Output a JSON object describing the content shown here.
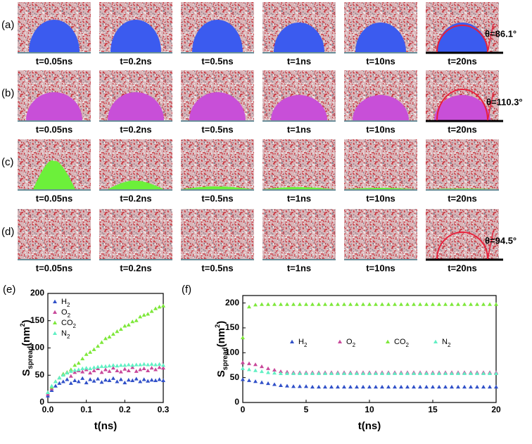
{
  "panels": {
    "rows": [
      {
        "label": "(a)",
        "times": [
          "t=0.05ns",
          "t=0.2ns",
          "t=0.5ns",
          "t=1ns",
          "t=10ns",
          "t=20ns"
        ],
        "color": "#3b5bef",
        "angle": "θ=86.1°"
      },
      {
        "label": "(b)",
        "times": [
          "t=0.05ns",
          "t=0.2ns",
          "t=0.5ns",
          "t=1ns",
          "t=10ns",
          "t=20ns"
        ],
        "color": "#c84fd8",
        "angle": "θ=110.3°"
      },
      {
        "label": "(c)",
        "times": [
          "t=0.05ns",
          "t=0.2ns",
          "t=0.5ns",
          "t=1ns",
          "t=10ns",
          "t=20ns"
        ],
        "color": "#6cf03a"
      },
      {
        "label": "(d)",
        "times": [
          "t=0.05ns",
          "t=0.2ns",
          "t=0.5ns",
          "t=1ns",
          "t=10ns",
          "t=20ns"
        ],
        "color": "#5fe3b2",
        "angle": "θ=94.5°"
      }
    ]
  },
  "chart_data": [
    {
      "type": "scatter",
      "label": "(e)",
      "x_label": "t(ns)",
      "y_label": [
        "S",
        "spread",
        "(nm",
        "2",
        ")"
      ],
      "x": [
        0,
        0.01,
        0.02,
        0.03,
        0.04,
        0.05,
        0.06,
        0.07,
        0.08,
        0.09,
        0.1,
        0.11,
        0.12,
        0.13,
        0.14,
        0.15,
        0.16,
        0.17,
        0.18,
        0.19,
        0.2,
        0.21,
        0.22,
        0.23,
        0.24,
        0.25,
        0.26,
        0.27,
        0.28,
        0.29,
        0.3
      ],
      "xlim": [
        0,
        0.3
      ],
      "xticks": [
        {
          "value": 0,
          "label": "0.0"
        },
        0.1,
        0.2,
        0.3
      ],
      "ylim": [
        0,
        200
      ],
      "yticks": [
        0,
        50,
        100,
        150,
        200
      ],
      "legend": "upper left",
      "series": [
        {
          "name": "H2",
          "color": "#3050c8",
          "values": [
            12,
            22,
            30,
            35,
            38,
            42,
            35,
            40,
            38,
            44,
            36,
            42,
            39,
            43,
            37,
            41,
            40,
            44,
            38,
            42,
            36,
            41,
            40,
            43,
            38,
            42,
            39,
            41,
            40,
            42,
            40
          ]
        },
        {
          "name": "O2",
          "color": "#c8489a",
          "values": [
            15,
            25,
            38,
            45,
            52,
            55,
            48,
            55,
            58,
            56,
            60,
            54,
            58,
            62,
            55,
            60,
            57,
            63,
            58,
            56,
            61,
            58,
            64,
            57,
            60,
            62,
            58,
            63,
            60,
            64,
            63
          ]
        },
        {
          "name": "CO2",
          "color": "#7ee83a",
          "values": [
            18,
            28,
            38,
            45,
            52,
            55,
            60,
            68,
            72,
            80,
            88,
            92,
            97,
            103,
            110,
            117,
            120,
            125,
            130,
            134,
            140,
            142,
            148,
            150,
            157,
            160,
            162,
            167,
            172,
            175,
            177
          ]
        },
        {
          "name": "N2",
          "color": "#62f0c4",
          "values": [
            18,
            30,
            38,
            45,
            50,
            54,
            57,
            59,
            60,
            62,
            63,
            62,
            64,
            65,
            66,
            66,
            67,
            68,
            67,
            68,
            68,
            69,
            68,
            69,
            69,
            70,
            69,
            70,
            69,
            70,
            68
          ]
        }
      ]
    },
    {
      "type": "scatter",
      "label": "(f)",
      "x_label": "t(ns)",
      "y_label": [
        "S",
        "spread",
        "(nm",
        "2",
        ")"
      ],
      "x": [
        0,
        0.5,
        1,
        1.5,
        2,
        2.5,
        3,
        3.5,
        4,
        4.5,
        5,
        5.5,
        6,
        6.5,
        7,
        7.5,
        8,
        8.5,
        9,
        9.5,
        10,
        10.5,
        11,
        11.5,
        12,
        12.5,
        13,
        13.5,
        14,
        14.5,
        15,
        15.5,
        16,
        16.5,
        17,
        17.5,
        18,
        18.5,
        19,
        19.5,
        20
      ],
      "xlim": [
        0,
        20
      ],
      "xticks": [
        0,
        5,
        10,
        15,
        20
      ],
      "ylim": [
        0,
        215
      ],
      "yticks": [
        0,
        50,
        100,
        150,
        200
      ],
      "legend": "center",
      "series": [
        {
          "name": "H2",
          "color": "#3050c8",
          "values": [
            46,
            44,
            42,
            40,
            38,
            36,
            34,
            33,
            32,
            32,
            32,
            31,
            31,
            31,
            31,
            31,
            31,
            31,
            31,
            31,
            31,
            31,
            31,
            31,
            31,
            31,
            31,
            31,
            31,
            31,
            31,
            31,
            31,
            31,
            31,
            31,
            31,
            31,
            31,
            31,
            31
          ]
        },
        {
          "name": "O2",
          "color": "#c8489a",
          "values": [
            80,
            78,
            76,
            72,
            68,
            65,
            62,
            61,
            60,
            60,
            60,
            60,
            60,
            60,
            60,
            60,
            60,
            60,
            60,
            60,
            60,
            60,
            60,
            60,
            60,
            60,
            60,
            60,
            60,
            60,
            60,
            60,
            60,
            60,
            60,
            60,
            60,
            60,
            60,
            60,
            60
          ]
        },
        {
          "name": "CO2",
          "color": "#7ee83a",
          "values": [
            130,
            192,
            196,
            197,
            197,
            197,
            197,
            197,
            197,
            197,
            197,
            197,
            197,
            197,
            197,
            197,
            197,
            197,
            197,
            197,
            197,
            197,
            197,
            197,
            197,
            197,
            197,
            197,
            197,
            197,
            197,
            197,
            197,
            197,
            197,
            197,
            197,
            197,
            197,
            197,
            197
          ]
        },
        {
          "name": "N2",
          "color": "#62f0c4",
          "values": [
            68,
            66,
            64,
            62,
            60,
            59,
            58,
            58,
            58,
            58,
            58,
            58,
            58,
            58,
            58,
            58,
            58,
            58,
            58,
            58,
            58,
            58,
            58,
            58,
            58,
            58,
            58,
            58,
            58,
            58,
            58,
            58,
            58,
            58,
            58,
            58,
            58,
            58,
            58,
            58,
            58
          ]
        }
      ]
    }
  ]
}
